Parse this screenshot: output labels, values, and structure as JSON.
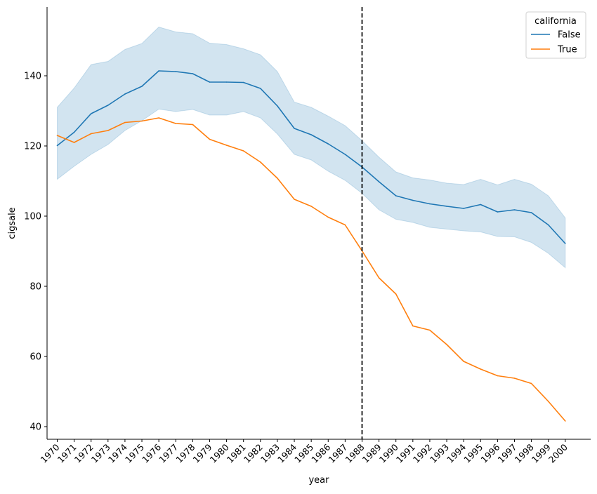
{
  "chart_data": {
    "type": "line",
    "xlabel": "year",
    "ylabel": "cigsale",
    "x": [
      1970,
      1971,
      1972,
      1973,
      1974,
      1975,
      1976,
      1977,
      1978,
      1979,
      1980,
      1981,
      1982,
      1983,
      1984,
      1985,
      1986,
      1987,
      1988,
      1989,
      1990,
      1991,
      1992,
      1993,
      1994,
      1995,
      1996,
      1997,
      1998,
      1999,
      2000
    ],
    "xticklabels": [
      "1970",
      "1971",
      "1972",
      "1973",
      "1974",
      "1975",
      "1976",
      "1977",
      "1978",
      "1979",
      "1980",
      "1981",
      "1982",
      "1983",
      "1984",
      "1985",
      "1986",
      "1987",
      "1988",
      "1989",
      "1990",
      "1991",
      "1992",
      "1993",
      "1994",
      "1995",
      "1996",
      "1997",
      "1998",
      "1999",
      "2000"
    ],
    "ylim": [
      36.4,
      159.6
    ],
    "yticks": [
      40,
      60,
      80,
      100,
      120,
      140
    ],
    "xlim": [
      1969.4,
      2001.5
    ],
    "vline": {
      "x": 1988,
      "style": "dashed",
      "color": "#000000"
    },
    "legend": {
      "title": "california",
      "placement": "top-right"
    },
    "series": [
      {
        "name": "False",
        "color": "#1f77b4",
        "values": [
          120.1,
          123.9,
          129.2,
          131.6,
          134.8,
          137.0,
          141.4,
          141.2,
          140.6,
          138.2,
          138.2,
          138.1,
          136.4,
          131.4,
          125.0,
          123.2,
          120.6,
          117.6,
          114.0,
          109.8,
          105.8,
          104.5,
          103.5,
          102.8,
          102.2,
          103.3,
          101.2,
          101.8,
          101.0,
          97.5,
          92.2
        ],
        "ci_upper": [
          131.0,
          136.5,
          143.2,
          144.1,
          147.5,
          149.2,
          153.9,
          152.5,
          152.0,
          149.3,
          148.9,
          147.7,
          146.0,
          141.2,
          132.5,
          131.0,
          128.5,
          125.8,
          121.5,
          116.8,
          112.6,
          110.9,
          110.3,
          109.4,
          109.0,
          110.5,
          108.9,
          110.5,
          109.1,
          105.8,
          99.5
        ],
        "ci_lower": [
          110.5,
          114.2,
          117.6,
          120.4,
          124.4,
          127.2,
          130.5,
          129.8,
          130.4,
          128.8,
          128.8,
          129.8,
          128.0,
          123.4,
          117.6,
          116.0,
          112.8,
          110.2,
          106.5,
          101.8,
          99.1,
          98.2,
          96.8,
          96.3,
          95.8,
          95.5,
          94.2,
          94.1,
          92.5,
          89.4,
          85.3
        ]
      },
      {
        "name": "True",
        "color": "#ff7f0e",
        "values": [
          123.0,
          121.0,
          123.5,
          124.4,
          126.7,
          127.1,
          128.0,
          126.4,
          126.1,
          121.9,
          120.2,
          118.6,
          115.4,
          110.8,
          104.8,
          102.8,
          99.7,
          97.5,
          90.1,
          82.4,
          77.8,
          68.7,
          67.5,
          63.4,
          58.6,
          56.4,
          54.5,
          53.8,
          52.3,
          47.2,
          41.6
        ]
      }
    ]
  }
}
